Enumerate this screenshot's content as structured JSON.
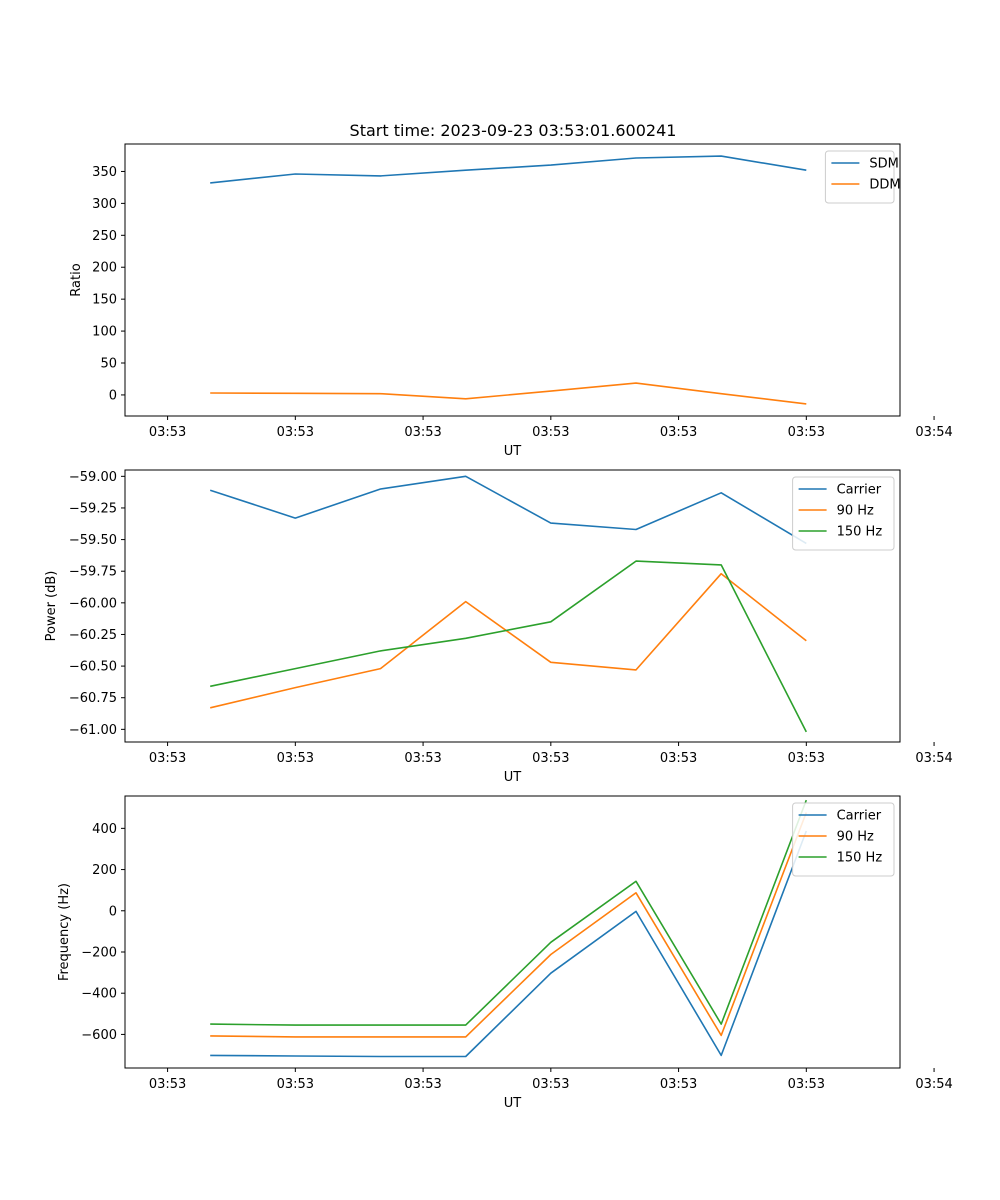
{
  "figure_title": "Start time: 2023-09-23 03:53:01.600241",
  "chart_data": [
    {
      "type": "line",
      "title": "Start time: 2023-09-23 03:53:01.600241",
      "xlabel": "UT",
      "ylabel": "Ratio",
      "x": [
        1,
        2,
        3,
        4,
        5,
        6,
        7,
        8
      ],
      "xlim": [
        0,
        9.1
      ],
      "xticks": [
        0.5,
        2,
        3.5,
        5,
        6.5,
        8,
        9.5
      ],
      "xtick_labels": [
        "03:53",
        "03:53",
        "03:53",
        "03:53",
        "03:53",
        "03:53",
        "03:54"
      ],
      "ylim": [
        -33,
        393
      ],
      "yticks": [
        0,
        50,
        100,
        150,
        200,
        250,
        300,
        350
      ],
      "ytick_labels": [
        "0",
        "50",
        "100",
        "150",
        "200",
        "250",
        "300",
        "350"
      ],
      "legend_position": "top-right",
      "series": [
        {
          "name": "SDM",
          "color": "#1f77b4",
          "values": [
            332,
            346,
            343,
            352,
            360,
            371,
            374,
            352
          ]
        },
        {
          "name": "DDM",
          "color": "#ff7f0e",
          "values": [
            3,
            2.5,
            2,
            -6,
            6,
            18.5,
            2,
            -14
          ]
        }
      ]
    },
    {
      "type": "line",
      "title": "",
      "xlabel": "UT",
      "ylabel": "Power (dB)",
      "x": [
        1,
        2,
        3,
        4,
        5,
        6,
        7,
        8
      ],
      "xlim": [
        0,
        9.1
      ],
      "xticks": [
        0.5,
        2,
        3.5,
        5,
        6.5,
        8,
        9.5
      ],
      "xtick_labels": [
        "03:53",
        "03:53",
        "03:53",
        "03:53",
        "03:53",
        "03:53",
        "03:54"
      ],
      "ylim": [
        -61.1,
        -58.95
      ],
      "yticks": [
        -61.0,
        -60.75,
        -60.5,
        -60.25,
        -60.0,
        -59.75,
        -59.5,
        -59.25,
        -59.0
      ],
      "ytick_labels": [
        "−61.00",
        "−60.75",
        "−60.50",
        "−60.25",
        "−60.00",
        "−59.75",
        "−59.50",
        "−59.25",
        "−59.00"
      ],
      "legend_position": "top-right",
      "series": [
        {
          "name": "Carrier",
          "color": "#1f77b4",
          "values": [
            -59.11,
            -59.33,
            -59.1,
            -59.0,
            -59.37,
            -59.42,
            -59.13,
            -59.53
          ]
        },
        {
          "name": "90 Hz",
          "color": "#ff7f0e",
          "values": [
            -60.83,
            -60.67,
            -60.52,
            -59.99,
            -60.47,
            -60.53,
            -59.77,
            -60.3
          ]
        },
        {
          "name": "150 Hz",
          "color": "#2ca02c",
          "values": [
            -60.66,
            -60.52,
            -60.38,
            -60.28,
            -60.15,
            -59.67,
            -59.7,
            -61.02
          ]
        }
      ]
    },
    {
      "type": "line",
      "title": "",
      "xlabel": "UT",
      "ylabel": "Frequency (Hz)",
      "x": [
        1,
        2,
        3,
        4,
        5,
        6,
        7,
        8
      ],
      "xlim": [
        0,
        9.1
      ],
      "xticks": [
        0.5,
        2,
        3.5,
        5,
        6.5,
        8,
        9.5
      ],
      "xtick_labels": [
        "03:53",
        "03:53",
        "03:53",
        "03:53",
        "03:53",
        "03:53",
        "03:54"
      ],
      "ylim": [
        -763,
        557
      ],
      "yticks": [
        -600,
        -400,
        -200,
        0,
        200,
        400
      ],
      "ytick_labels": [
        "−600",
        "−400",
        "−200",
        "0",
        "200",
        "400"
      ],
      "legend_position": "top-right",
      "series": [
        {
          "name": "Carrier",
          "color": "#1f77b4",
          "values": [
            -702,
            -705,
            -707,
            -707,
            -303,
            -3,
            -702,
            387
          ]
        },
        {
          "name": "90 Hz",
          "color": "#ff7f0e",
          "values": [
            -607,
            -612,
            -612,
            -612,
            -212,
            87,
            -605,
            477
          ]
        },
        {
          "name": "150 Hz",
          "color": "#2ca02c",
          "values": [
            -550,
            -555,
            -555,
            -555,
            -153,
            143,
            -550,
            537
          ]
        }
      ]
    }
  ]
}
